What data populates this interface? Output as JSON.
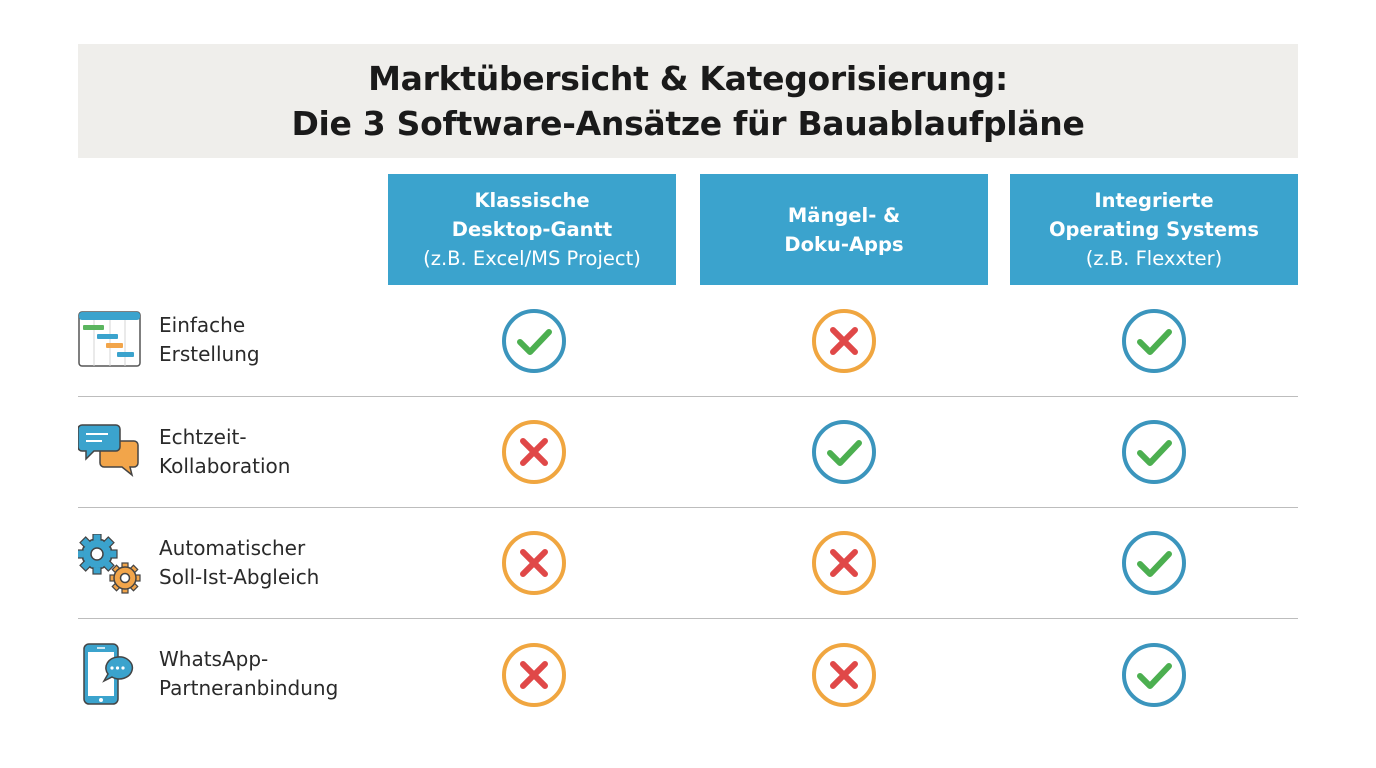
{
  "title": {
    "line1": "Marktübersicht & Kategorisierung:",
    "line2": "Die 3 Software-Ansätze für Bauablaufpläne"
  },
  "columns": [
    {
      "line1": "Klassische",
      "line2": "Desktop-Gantt",
      "sub": "(z.B. Excel/MS Project)"
    },
    {
      "line1": "Mängel- &",
      "line2": "Doku-Apps",
      "sub": ""
    },
    {
      "line1": "Integrierte",
      "line2": "Operating Systems",
      "sub": "(z.B. Flexxter)"
    }
  ],
  "rows": [
    {
      "label_line1": "Einfache",
      "label_line2": "Erstellung",
      "icon": "gantt-chart-icon",
      "values": [
        true,
        false,
        true
      ]
    },
    {
      "label_line1": "Echtzeit-",
      "label_line2": "Kollaboration",
      "icon": "chat-bubbles-icon",
      "values": [
        false,
        true,
        true
      ]
    },
    {
      "label_line1": "Automatischer",
      "label_line2": "Soll-Ist-Abgleich",
      "icon": "gears-icon",
      "values": [
        false,
        false,
        true
      ]
    },
    {
      "label_line1": "WhatsApp-",
      "label_line2": "Partneranbindung",
      "icon": "smartphone-chat-icon",
      "values": [
        false,
        false,
        true
      ]
    }
  ],
  "colors": {
    "header_bg": "#3ba3cd",
    "title_bg": "#efeeeb",
    "check_ring": "#3b95bd",
    "check_mark": "#4caf50",
    "cross_ring": "#f0a640",
    "cross_mark": "#e04848",
    "icon_blue": "#3ba3cd",
    "icon_orange": "#f2a54a",
    "icon_green": "#5bb55f"
  }
}
